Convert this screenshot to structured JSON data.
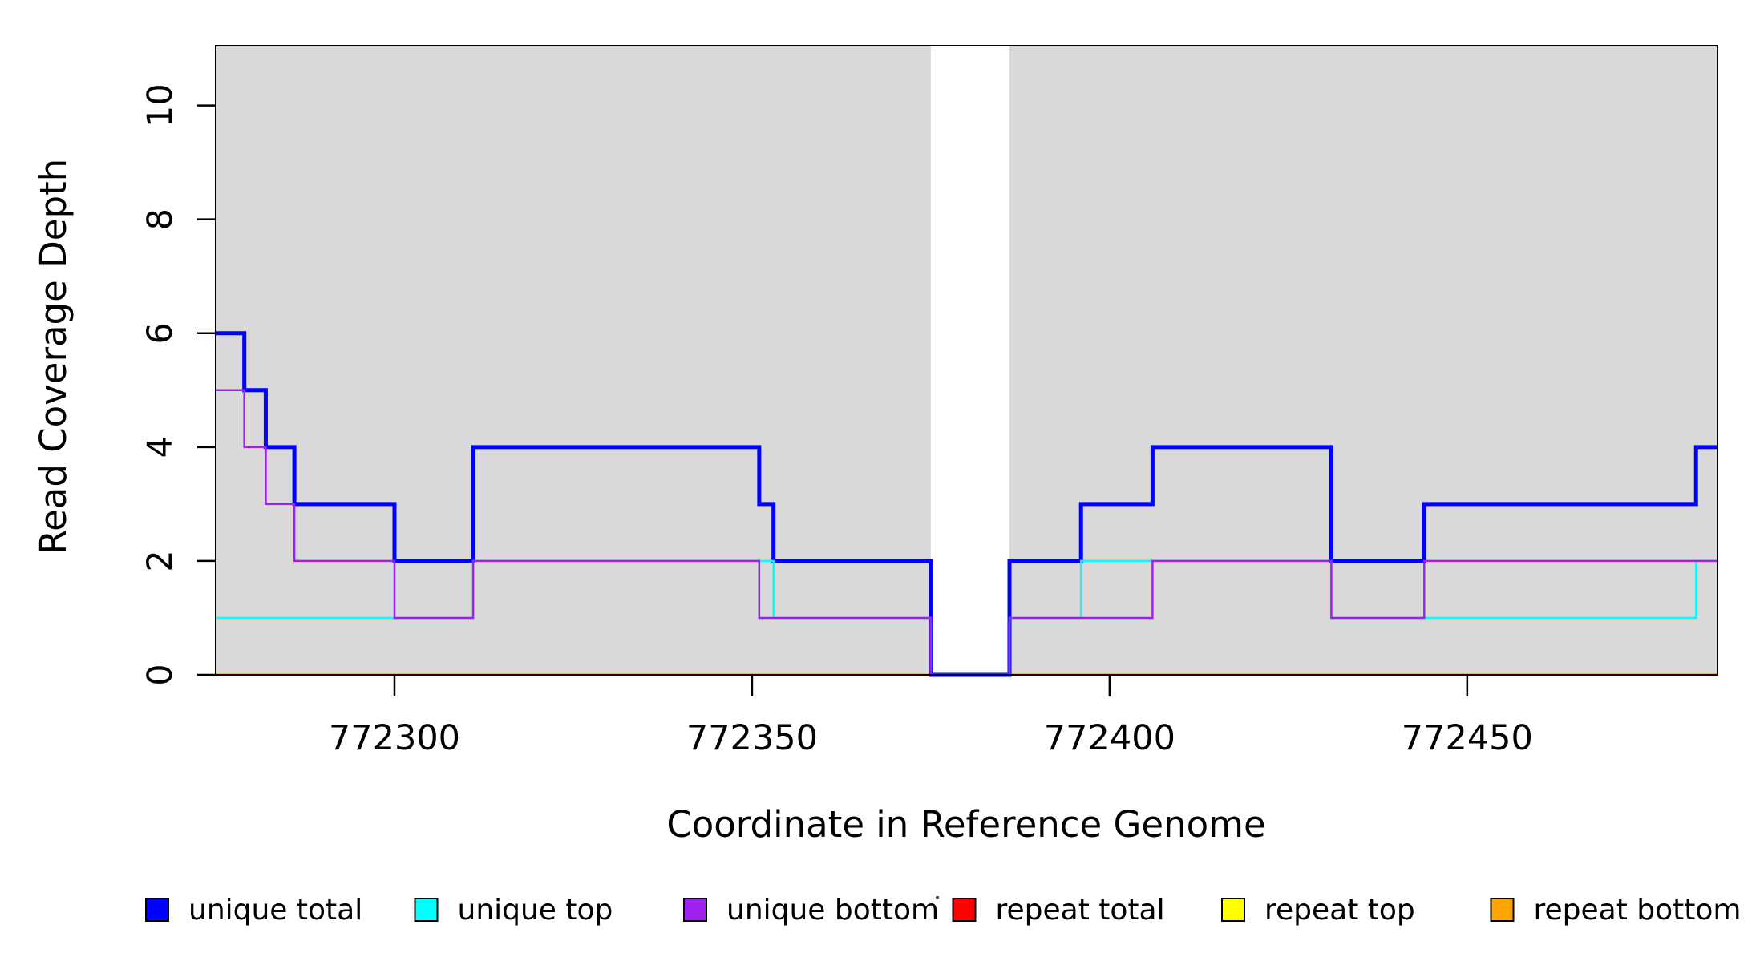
{
  "chart_data": {
    "type": "line",
    "subtype": "step",
    "title": "",
    "xlabel": "Coordinate in Reference Genome",
    "ylabel": "Read Coverage Depth",
    "xlim": [
      772275,
      772485
    ],
    "ylim": [
      0,
      11.05
    ],
    "x_ticks": [
      772300,
      772350,
      772400,
      772450
    ],
    "y_ticks": [
      0,
      2,
      4,
      6,
      8,
      10
    ],
    "grid": false,
    "plot_background_color": "#d9d9d9",
    "gap_background_color": "#ffffff",
    "shaded_regions": [
      [
        772275,
        772375
      ],
      [
        772386,
        772485
      ]
    ],
    "gap_region": [
      772375,
      772386
    ],
    "legend_position": "bottom",
    "series": [
      {
        "name": "unique total",
        "color": "#0000ff",
        "line_width": 5,
        "steps": [
          [
            772275,
            6
          ],
          [
            772279,
            5
          ],
          [
            772282,
            4
          ],
          [
            772286,
            3
          ],
          [
            772300,
            2
          ],
          [
            772311,
            4
          ],
          [
            772351,
            3
          ],
          [
            772353,
            2
          ],
          [
            772375,
            0
          ],
          [
            772386,
            2
          ],
          [
            772396,
            3
          ],
          [
            772406,
            4
          ],
          [
            772431,
            2
          ],
          [
            772444,
            3
          ],
          [
            772482,
            4
          ]
        ],
        "x_end": 772485
      },
      {
        "name": "unique top",
        "color": "#00ffff",
        "line_width": 2.5,
        "steps": [
          [
            772275,
            1
          ],
          [
            772311,
            2
          ],
          [
            772353,
            1
          ],
          [
            772375,
            0
          ],
          [
            772386,
            1
          ],
          [
            772396,
            2
          ],
          [
            772431,
            1
          ],
          [
            772482,
            2
          ]
        ],
        "x_end": 772485
      },
      {
        "name": "unique bottom",
        "color": "#a020f0",
        "line_width": 2.5,
        "steps": [
          [
            772275,
            5
          ],
          [
            772279,
            4
          ],
          [
            772282,
            3
          ],
          [
            772286,
            2
          ],
          [
            772300,
            1
          ],
          [
            772311,
            2
          ],
          [
            772351,
            1
          ],
          [
            772375,
            0
          ],
          [
            772386,
            1
          ],
          [
            772406,
            2
          ],
          [
            772431,
            1
          ],
          [
            772444,
            2
          ]
        ],
        "x_end": 772485
      },
      {
        "name": "repeat total",
        "color": "#ff0000",
        "line_width": 2.5,
        "steps": [
          [
            772275,
            0
          ]
        ],
        "x_end": 772485
      },
      {
        "name": "repeat top",
        "color": "#ffff00",
        "line_width": 2.5,
        "steps": [
          [
            772275,
            0
          ]
        ],
        "x_end": 772485
      },
      {
        "name": "repeat bottom",
        "color": "#ffa500",
        "line_width": 3.5,
        "steps": [
          [
            772275,
            0
          ]
        ],
        "x_end": 772485
      }
    ],
    "draw_order": [
      3,
      4,
      5,
      0,
      1,
      2
    ],
    "stray_dot": {
      "x": 1169,
      "y": 1120
    }
  }
}
